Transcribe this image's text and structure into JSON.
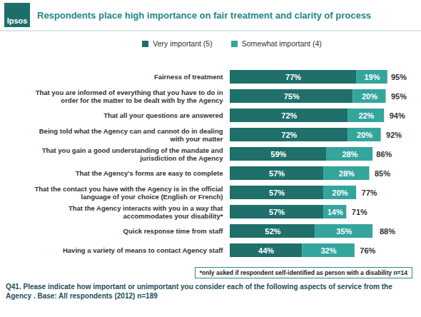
{
  "chart_data": {
    "type": "bar",
    "orientation": "horizontal",
    "stacked": true,
    "data_labels": true,
    "tick_labels": "y",
    "legend": "top",
    "logo": "Ipsos",
    "title": "Respondents place high importance on fair treatment and clarity of process",
    "categories": [
      "Fairness of treatment",
      "That you are informed of everything that you have to do in\norder for the matter to be dealt with by the Agency",
      "That all your questions are answered",
      "Being told what the Agency can and cannot do in dealing\nwith your matter",
      "That you gain a good understanding of the mandate and\njurisdiction of the Agency",
      "That the Agency's forms are easy to complete",
      "That the contact you have with the Agency is in the official\nlanguage of your choice (English or French)",
      "That the Agency interacts with you in a way that\naccommodates your disability*",
      "Quick response time from staff",
      "Having a variety of means to contact Agency staff"
    ],
    "series": [
      {
        "name": "Very important (5)",
        "color": "#1f6f6b",
        "values": [
          77,
          75,
          72,
          72,
          59,
          57,
          57,
          57,
          52,
          44
        ],
        "value_labels": [
          "77%",
          "75%",
          "72%",
          "72%",
          "59%",
          "57%",
          "57%",
          "57%",
          "52%",
          "44%"
        ]
      },
      {
        "name": "Somewhat important (4)",
        "color": "#33a59d",
        "values": [
          19,
          20,
          22,
          20,
          28,
          28,
          20,
          14,
          35,
          32
        ],
        "value_labels": [
          "19%",
          "20%",
          "22%",
          "20%",
          "28%",
          "28%",
          "20%",
          "14%",
          "35%",
          "32%"
        ]
      }
    ],
    "totals": [
      95,
      95,
      94,
      92,
      86,
      85,
      77,
      71,
      88,
      76
    ],
    "total_labels": [
      "95%",
      "95%",
      "94%",
      "92%",
      "86%",
      "85%",
      "77%",
      "71%",
      "88%",
      "76%"
    ],
    "xlim": [
      0,
      100
    ],
    "footnote": "*only asked if respondent self-identified as person with a disability n=14",
    "caption": "Q41. Please indicate how important or unimportant you consider each of the following aspects of service from the Agency . Base: All respondents (2012) n=189"
  }
}
